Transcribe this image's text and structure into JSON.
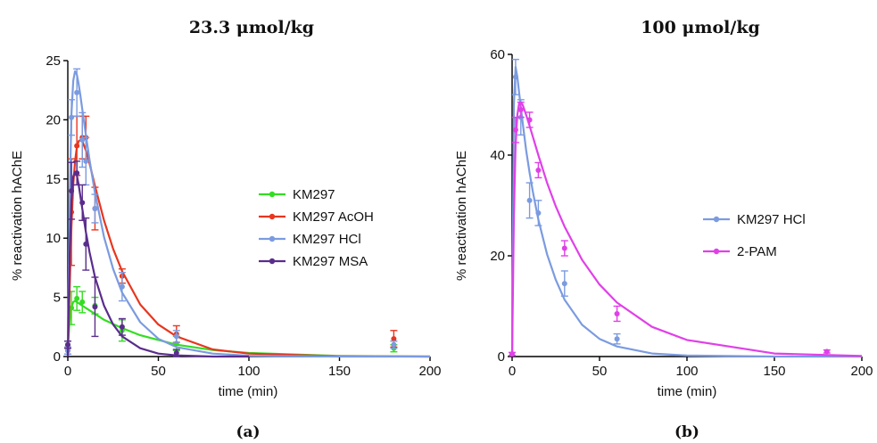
{
  "chart_data": [
    {
      "type": "line",
      "title": "23.3 μmol/kg",
      "panel_label": "(a)",
      "xlabel": "time (min)",
      "ylabel": "% reactivation hAChE",
      "xlim": [
        0,
        200
      ],
      "ylim": [
        0,
        25
      ],
      "xticks": [
        0,
        50,
        100,
        150,
        200
      ],
      "yticks": [
        0,
        5,
        10,
        15,
        20,
        25
      ],
      "grid": false,
      "legend_position": "center-right",
      "series": [
        {
          "name": "KM297",
          "color": "#33dd22",
          "x": [
            0,
            2,
            5,
            8,
            15,
            30,
            60,
            180
          ],
          "y": [
            1.0,
            4.1,
            4.9,
            4.6,
            4.3,
            2.2,
            1.1,
            0.7
          ],
          "err": [
            0.3,
            1.4,
            1.0,
            0.9,
            0.7,
            0.9,
            0.6,
            0.3
          ],
          "fit_x": [
            0,
            1,
            2,
            3,
            4,
            5,
            6,
            8,
            10,
            15,
            20,
            30,
            40,
            60,
            80,
            100,
            150,
            200
          ],
          "fit_y": [
            0.8,
            3.0,
            4.2,
            4.6,
            4.7,
            4.6,
            4.5,
            4.3,
            4.1,
            3.6,
            3.1,
            2.4,
            1.8,
            1.0,
            0.55,
            0.3,
            0.05,
            0.0
          ]
        },
        {
          "name": "KM297 AcOH",
          "color": "#e8361f",
          "x": [
            0,
            2,
            5,
            8,
            10,
            15,
            30,
            60,
            180
          ],
          "y": [
            0.5,
            12.2,
            17.8,
            18.5,
            18.5,
            12.5,
            6.8,
            1.9,
            1.5
          ],
          "err": [
            0.3,
            4.5,
            2.5,
            1.8,
            1.8,
            1.8,
            0.6,
            0.7,
            0.7
          ],
          "fit_x": [
            0,
            1,
            2,
            3,
            4,
            5,
            6,
            7,
            8,
            10,
            12,
            15,
            20,
            25,
            30,
            40,
            50,
            60,
            80,
            100,
            150,
            200
          ],
          "fit_y": [
            0,
            5.5,
            11.0,
            14.5,
            16.5,
            17.7,
            18.2,
            18.3,
            18.2,
            17.4,
            16.3,
            14.4,
            11.5,
            9.1,
            7.2,
            4.4,
            2.7,
            1.7,
            0.6,
            0.25,
            0.02,
            0.0
          ]
        },
        {
          "name": "KM297 HCl",
          "color": "#7b9be0",
          "x": [
            0,
            2,
            5,
            8,
            10,
            15,
            30,
            60,
            180
          ],
          "y": [
            0.5,
            20.2,
            22.3,
            18.3,
            16.5,
            12.5,
            5.9,
            1.7,
            1.0
          ],
          "err": [
            0.3,
            1.5,
            2.0,
            2.3,
            2.0,
            1.2,
            1.2,
            0.5,
            0.3
          ],
          "fit_x": [
            0,
            1,
            2,
            3,
            4,
            5,
            6,
            7,
            8,
            10,
            12,
            15,
            20,
            25,
            30,
            40,
            50,
            60,
            80,
            100,
            150,
            200
          ],
          "fit_y": [
            0,
            13.0,
            20.5,
            23.3,
            24.1,
            23.8,
            23.0,
            22.0,
            20.9,
            18.7,
            16.6,
            13.8,
            10.1,
            7.4,
            5.4,
            2.9,
            1.5,
            0.8,
            0.25,
            0.07,
            0.0,
            0.0
          ]
        },
        {
          "name": "KM297 MSA",
          "color": "#5a2d8c",
          "x": [
            0,
            2,
            5,
            8,
            10,
            15,
            30,
            60
          ],
          "y": [
            1.0,
            14.0,
            15.5,
            13.0,
            9.5,
            4.2,
            2.5,
            0.3
          ],
          "err": [
            0.3,
            2.4,
            1.0,
            1.5,
            2.2,
            2.5,
            0.7,
            0.3
          ],
          "fit_x": [
            0,
            1,
            2,
            3,
            4,
            5,
            6,
            7,
            8,
            10,
            12,
            15,
            20,
            25,
            30,
            40,
            50,
            60,
            80,
            100
          ],
          "fit_y": [
            0,
            8.5,
            13.2,
            15.2,
            15.6,
            15.3,
            14.5,
            13.5,
            12.5,
            10.5,
            8.8,
            6.7,
            4.3,
            2.7,
            1.7,
            0.7,
            0.25,
            0.1,
            0.0,
            0.0
          ]
        }
      ]
    },
    {
      "type": "line",
      "title": "100 μmol/kg",
      "panel_label": "(b)",
      "xlabel": "time (min)",
      "ylabel": "% reactivation hAChE",
      "xlim": [
        0,
        200
      ],
      "ylim": [
        0,
        60
      ],
      "xticks": [
        0,
        50,
        100,
        150,
        200
      ],
      "yticks": [
        0,
        20,
        40,
        60
      ],
      "grid": false,
      "legend_position": "center-right",
      "series": [
        {
          "name": "KM297 HCl",
          "color": "#7b9be0",
          "x": [
            0,
            2,
            5,
            10,
            15,
            30,
            60
          ],
          "y": [
            0.5,
            55.5,
            47.5,
            31.0,
            28.5,
            14.5,
            3.5
          ],
          "err": [
            0.3,
            3.5,
            3.5,
            3.5,
            2.5,
            2.5,
            1.0
          ],
          "fit_x": [
            0,
            1,
            2,
            3,
            4,
            5,
            6,
            8,
            10,
            12,
            15,
            20,
            25,
            30,
            40,
            50,
            60,
            80,
            100,
            150,
            200
          ],
          "fit_y": [
            0,
            50.0,
            57.5,
            55.5,
            52.5,
            49.5,
            46.5,
            41.0,
            36.5,
            32.5,
            27.2,
            20.3,
            15.2,
            11.3,
            6.3,
            3.5,
            2.0,
            0.6,
            0.2,
            0.0,
            0.0
          ]
        },
        {
          "name": "2-PAM",
          "color": "#e040e8",
          "x": [
            0,
            2,
            5,
            10,
            15,
            30,
            60,
            180
          ],
          "y": [
            0.5,
            45.0,
            49.0,
            47.0,
            37.0,
            21.5,
            8.5,
            1.0
          ],
          "err": [
            0.3,
            2.5,
            1.5,
            1.5,
            1.5,
            1.5,
            1.5,
            0.3
          ],
          "fit_x": [
            0,
            1,
            2,
            3,
            4,
            5,
            6,
            8,
            10,
            12,
            15,
            20,
            25,
            30,
            40,
            50,
            60,
            80,
            100,
            150,
            200
          ],
          "fit_y": [
            0,
            28.0,
            42.0,
            48.0,
            50.2,
            50.5,
            50.0,
            48.0,
            45.8,
            43.5,
            40.0,
            34.5,
            29.8,
            25.8,
            19.2,
            14.3,
            10.7,
            5.9,
            3.3,
            0.6,
            0.1
          ]
        }
      ]
    }
  ]
}
